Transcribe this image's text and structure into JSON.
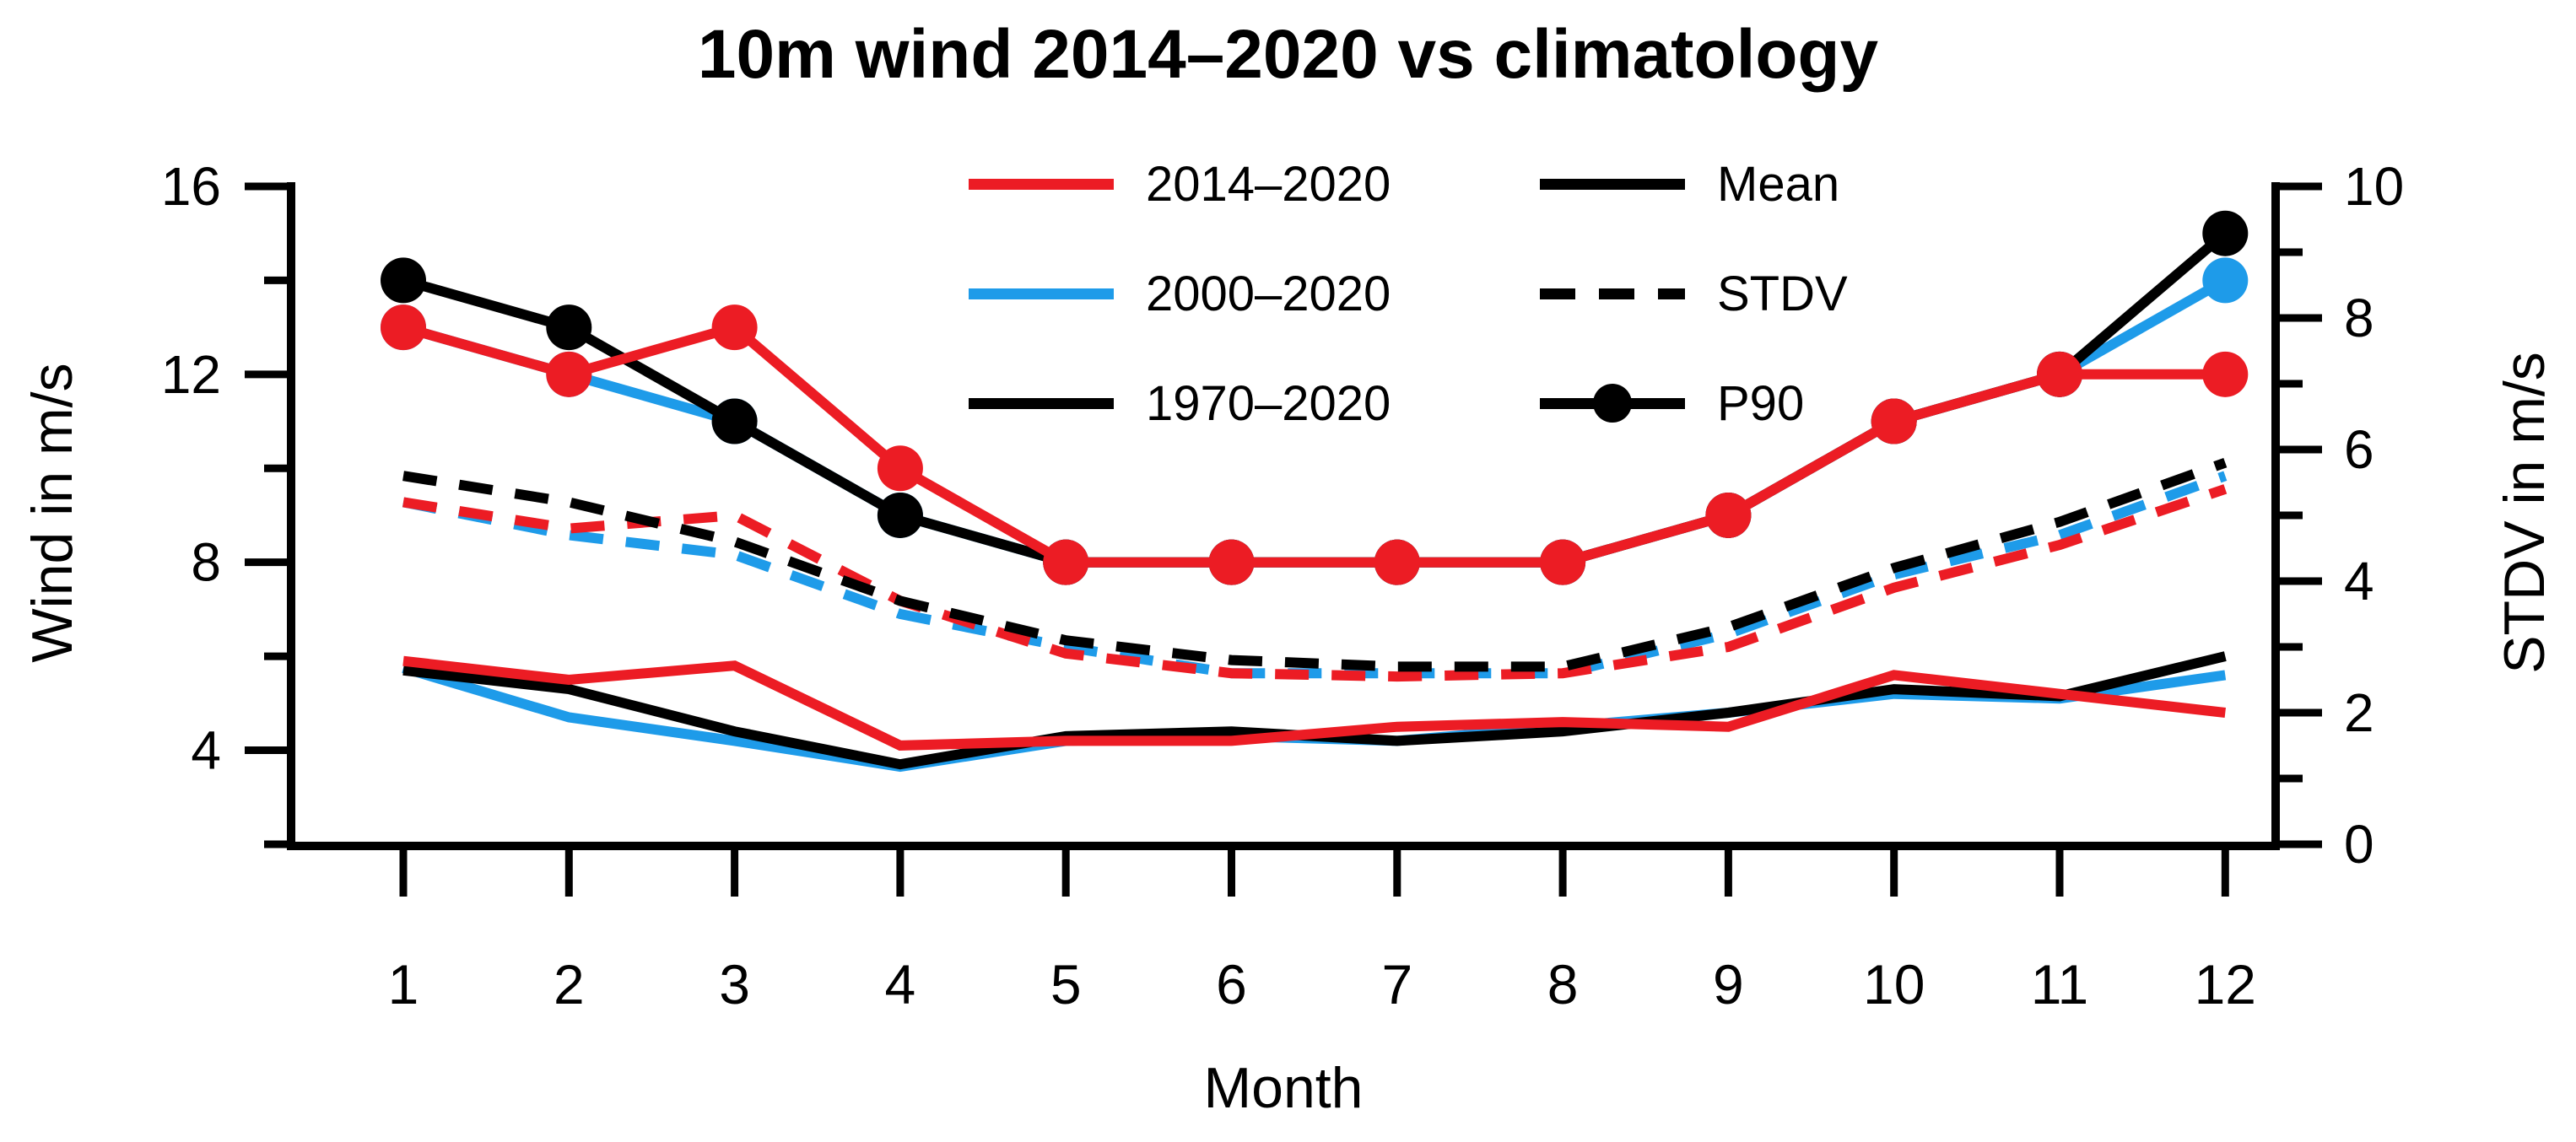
{
  "title": "10m wind 2014–2020 vs climatology",
  "chart_data": {
    "type": "line",
    "title": "10m wind 2014–2020 vs climatology",
    "xlabel": "Month",
    "ylabel_left": "Wind in m/s",
    "ylabel_right": "STDV in m/s",
    "x": [
      1,
      2,
      3,
      4,
      5,
      6,
      7,
      8,
      9,
      10,
      11,
      12
    ],
    "axes": {
      "x_ticks": [
        1,
        2,
        3,
        4,
        5,
        6,
        7,
        8,
        9,
        10,
        11,
        12
      ],
      "left": {
        "label": "Wind in m/s",
        "min": 2,
        "max": 16,
        "major_ticks": [
          16,
          12,
          8,
          4
        ],
        "minor_ticks": [
          14,
          10,
          6,
          2
        ]
      },
      "right": {
        "label": "STDV in m/s",
        "min": 0,
        "max": 10,
        "major_ticks": [
          10,
          8,
          6,
          4,
          2,
          0
        ],
        "minor_ticks": [
          9,
          7,
          5,
          3,
          1
        ]
      }
    },
    "grid": false,
    "legend_position": "top-inside",
    "legend": {
      "periods": [
        {
          "label": "2014–2020",
          "color": "#EC1C24"
        },
        {
          "label": "2000–2020",
          "color": "#1E9BE9"
        },
        {
          "label": "1970–2020",
          "color": "#000000"
        }
      ],
      "stats": [
        {
          "label": "Mean",
          "style": "solid"
        },
        {
          "label": "STDV",
          "style": "dashed"
        },
        {
          "label": "P90",
          "style": "solid-dot"
        }
      ]
    },
    "series": [
      {
        "id": "mean-2000-2020",
        "period": "2000–2020",
        "stat": "Mean",
        "axis": "left",
        "style": "solid",
        "color": "#1E9BE9",
        "values": [
          5.75,
          4.7,
          4.2,
          3.65,
          4.2,
          4.3,
          4.2,
          4.5,
          4.8,
          5.2,
          5.1,
          5.6
        ]
      },
      {
        "id": "mean-1970-2020",
        "period": "1970–2020",
        "stat": "Mean",
        "axis": "left",
        "style": "solid",
        "color": "#000000",
        "values": [
          5.7,
          5.3,
          4.4,
          3.7,
          4.3,
          4.4,
          4.2,
          4.4,
          4.8,
          5.3,
          5.15,
          6.0
        ]
      },
      {
        "id": "mean-2014-2020",
        "period": "2014–2020",
        "stat": "Mean",
        "axis": "left",
        "style": "solid",
        "color": "#EC1C24",
        "values": [
          5.9,
          5.5,
          5.8,
          4.1,
          4.2,
          4.2,
          4.5,
          4.6,
          4.5,
          5.6,
          5.2,
          4.8
        ]
      },
      {
        "id": "stdv-2000-2020",
        "period": "2000–2020",
        "stat": "STDV",
        "axis": "right",
        "style": "dashed",
        "color": "#1E9BE9",
        "values": [
          5.2,
          4.7,
          4.4,
          3.5,
          3.0,
          2.6,
          2.6,
          2.6,
          3.2,
          4.1,
          4.7,
          5.6
        ]
      },
      {
        "id": "stdv-2014-2020",
        "period": "2014–2020",
        "stat": "STDV",
        "axis": "right",
        "style": "dashed",
        "color": "#EC1C24",
        "values": [
          5.2,
          4.8,
          5.0,
          3.7,
          2.9,
          2.6,
          2.55,
          2.6,
          3.0,
          3.9,
          4.55,
          5.4
        ]
      },
      {
        "id": "stdv-1970-2020",
        "period": "1970–2020",
        "stat": "STDV",
        "axis": "right",
        "style": "dashed",
        "color": "#000000",
        "values": [
          5.6,
          5.2,
          4.6,
          3.7,
          3.1,
          2.8,
          2.7,
          2.7,
          3.3,
          4.2,
          4.9,
          5.8
        ]
      },
      {
        "id": "p90-2000-2020",
        "period": "2000–2020",
        "stat": "P90",
        "axis": "left",
        "style": "solid-dot",
        "color": "#1E9BE9",
        "values": [
          13,
          12,
          11,
          9,
          8,
          8,
          8,
          8,
          9,
          11,
          12,
          14
        ]
      },
      {
        "id": "p90-1970-2020",
        "period": "1970–2020",
        "stat": "P90",
        "axis": "left",
        "style": "solid-dot",
        "color": "#000000",
        "values": [
          14,
          13,
          11,
          9,
          8,
          8,
          8,
          8,
          9,
          11,
          12,
          15
        ]
      },
      {
        "id": "p90-2014-2020",
        "period": "2014–2020",
        "stat": "P90",
        "axis": "left",
        "style": "solid-dot",
        "color": "#EC1C24",
        "values": [
          13,
          12,
          13,
          10,
          8,
          8,
          8,
          8,
          9,
          11,
          12,
          12
        ]
      }
    ]
  }
}
